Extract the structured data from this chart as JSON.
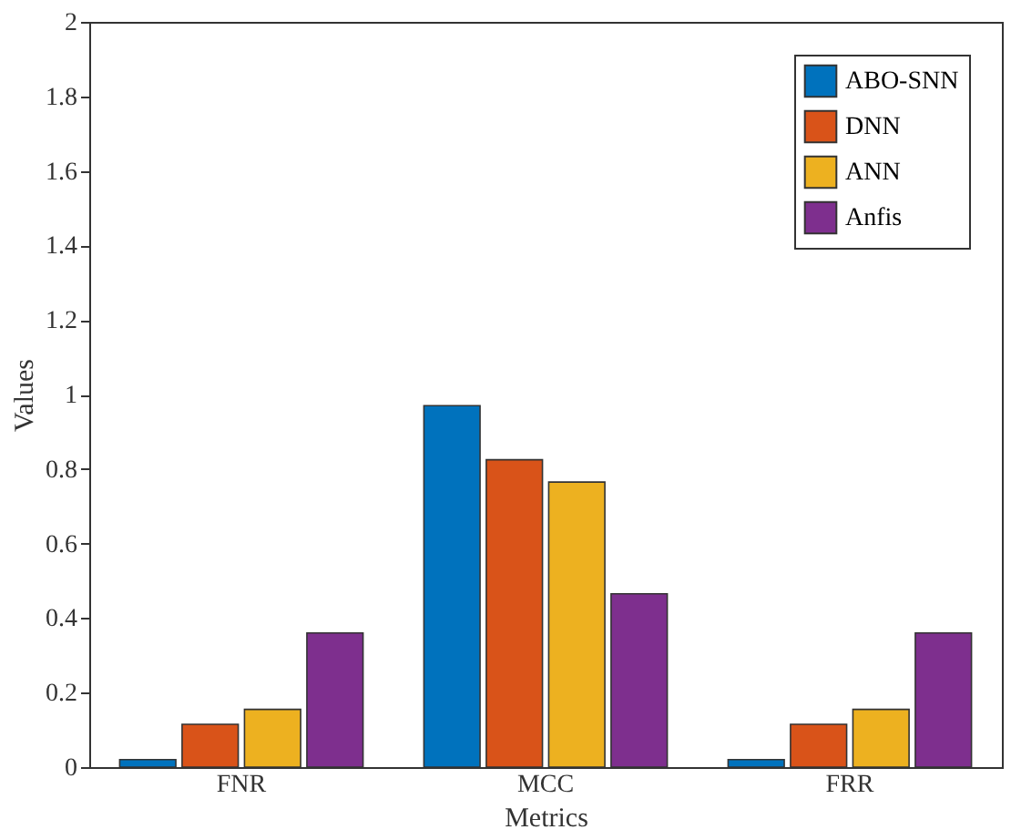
{
  "chart_data": {
    "type": "bar",
    "xlabel": "Metrics",
    "ylabel": "Values",
    "categories": [
      "FNR",
      "MCC",
      "FRR"
    ],
    "series": [
      {
        "name": "ABO-SNN",
        "color": "#0072bd",
        "values": [
          0.02,
          0.97,
          0.02
        ]
      },
      {
        "name": "DNN",
        "color": "#d95319",
        "values": [
          0.115,
          0.825,
          0.115
        ]
      },
      {
        "name": "ANN",
        "color": "#edb120",
        "values": [
          0.155,
          0.765,
          0.155
        ]
      },
      {
        "name": "Anfis",
        "color": "#7e2f8e",
        "values": [
          0.36,
          0.465,
          0.36
        ]
      }
    ],
    "ylim": [
      0,
      2
    ],
    "yticks": [
      0,
      0.2,
      0.4,
      0.6,
      0.8,
      1,
      1.2,
      1.4,
      1.6,
      1.8,
      2
    ],
    "grid": false,
    "legend": "top right"
  }
}
